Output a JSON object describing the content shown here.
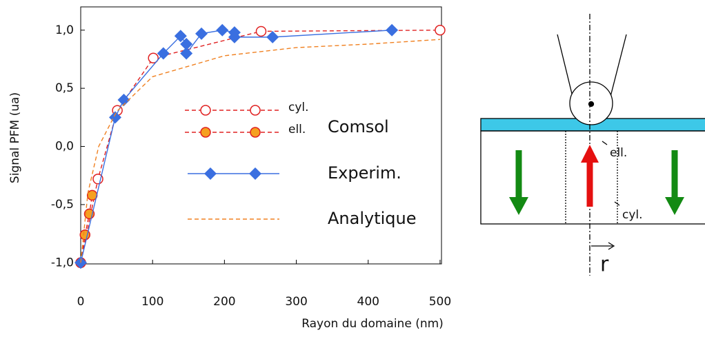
{
  "chart_data": {
    "type": "line",
    "xlabel": "Rayon du domaine (nm)",
    "ylabel": "Signal PFM (ua)",
    "xlim": [
      0,
      502
    ],
    "ylim": [
      -1.01,
      1.2
    ],
    "xticks": [
      0,
      100,
      200,
      300,
      400,
      500
    ],
    "yticks": [
      {
        "value": 1.0,
        "label": "1,0"
      },
      {
        "value": 0.5,
        "label": "0,5"
      },
      {
        "value": 0,
        "label": "0,0"
      },
      {
        "value": -0.5,
        "label": "-0,5"
      },
      {
        "value": -1.0,
        "label": "-1,0"
      }
    ],
    "legend_group": "Comsol",
    "series": [
      {
        "name": "cyl.",
        "color": "#e02020",
        "marker": "open-circle",
        "dash": true,
        "x": [
          0,
          24,
          51,
          101,
          251,
          500
        ],
        "values": [
          -1,
          -0.28,
          0.31,
          0.76,
          0.99,
          1.0
        ]
      },
      {
        "name": "ell.",
        "color": "#e02020",
        "marker": "filled-circle",
        "dash": true,
        "x": [
          0,
          6,
          12,
          16
        ],
        "values": [
          -1,
          -0.76,
          -0.58,
          -0.42
        ]
      },
      {
        "name": "Experim.",
        "color": "#3a6fe0",
        "marker": "diamond",
        "dash": false,
        "x": [
          0,
          48,
          60,
          115,
          139,
          147,
          147,
          168,
          197,
          214,
          214,
          267,
          433
        ],
        "values": [
          -1,
          0.25,
          0.4,
          0.8,
          0.95,
          0.88,
          0.8,
          0.97,
          1.0,
          0.98,
          0.94,
          0.94,
          1.0
        ]
      },
      {
        "name": "Analytique",
        "color": "#f08020",
        "marker": "none",
        "dash": true,
        "x": [
          0,
          10,
          25,
          50,
          100,
          200,
          300,
          400,
          500
        ],
        "values": [
          -1,
          -0.4,
          0,
          0.3,
          0.6,
          0.78,
          0.85,
          0.88,
          0.92
        ]
      }
    ]
  },
  "diagram": {
    "labels": [
      "ell.",
      "cyl.",
      "r"
    ]
  }
}
